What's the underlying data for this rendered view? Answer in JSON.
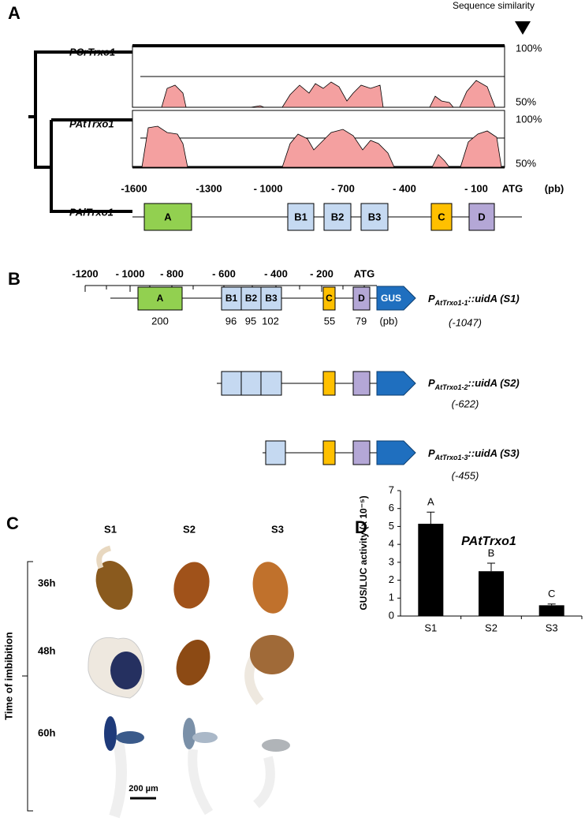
{
  "panel_a": {
    "label": "A",
    "similarity_title": "Sequence similarity",
    "species": [
      "PCrTrxo1",
      "PAtTrxo1",
      "PAlTrxo1"
    ],
    "pct_labels": [
      "100%",
      "50%",
      "100%",
      "50%"
    ],
    "axis_ticks": [
      "-1600",
      "-1300",
      "- 1000",
      "- 700",
      "- 400",
      "- 100",
      "ATG"
    ],
    "unit": "(pb)",
    "boxes": [
      "A",
      "B1",
      "B2",
      "B3",
      "C",
      "D"
    ]
  },
  "panel_b": {
    "label": "B",
    "ticks": [
      "-1200",
      "- 1000",
      "- 800",
      "- 600",
      "- 400",
      "- 200",
      "ATG"
    ],
    "boxes": [
      "A",
      "B1",
      "B2",
      "B3",
      "C",
      "D",
      "GUS"
    ],
    "sizes": [
      "200",
      "96",
      "95",
      "102",
      "55",
      "79",
      "(pb)"
    ],
    "constructs": [
      {
        "p": "P",
        "sub": "AtTrxo1-1",
        "rest": "::uidA (S1)",
        "pos": "(-1047)"
      },
      {
        "p": "P",
        "sub": "AtTrxo1-2",
        "rest": "::uidA (S2)",
        "pos": "(-622)"
      },
      {
        "p": "P",
        "sub": "AtTrxo1-3",
        "rest": "::uidA (S3)",
        "pos": "(-455)"
      }
    ]
  },
  "panel_c": {
    "label": "C",
    "columns": [
      "S1",
      "S2",
      "S3"
    ],
    "rows": [
      "36h",
      "48h",
      "60h"
    ],
    "axis_label": "Time of imbibition",
    "scale": "200 µm"
  },
  "chart_data": {
    "type": "bar",
    "panel_label": "D",
    "title": "PAtTrxo1",
    "y_label": "GUS/LUC activity (x 10⁻⁵)",
    "categories": [
      "S1",
      "S2",
      "S3"
    ],
    "values": [
      5.15,
      2.5,
      0.6
    ],
    "errors": [
      0.65,
      0.45,
      0.07
    ],
    "annotations": [
      "A",
      "B",
      "C"
    ],
    "color": "#000000",
    "ylim": [
      0,
      7
    ],
    "yticks": [
      0,
      1,
      2,
      3,
      4,
      5,
      6,
      7
    ]
  }
}
